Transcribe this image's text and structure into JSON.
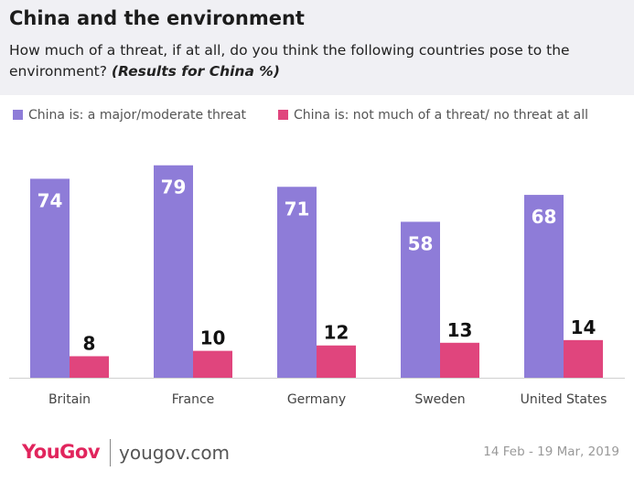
{
  "header": {
    "title": "China and the environment",
    "subtitle_main": "How much of a threat, if at all, do you think the following countries pose to the environment?",
    "subtitle_em": "(Results for China %)"
  },
  "colors": {
    "series_a": "#8e7cd8",
    "series_b": "#e0457d",
    "header_bg": "#f0f0f4",
    "brand": "#e1255d"
  },
  "chart_data": {
    "type": "bar",
    "categories": [
      "Britain",
      "France",
      "Germany",
      "Sweden",
      "United States"
    ],
    "series": [
      {
        "name": "China is: a major/moderate threat",
        "values": [
          74,
          79,
          71,
          58,
          68
        ]
      },
      {
        "name": "China is: not much of a threat/ no threat at all",
        "values": [
          8,
          10,
          12,
          13,
          14
        ]
      }
    ],
    "ylim": [
      0,
      80
    ],
    "legend": "top-left",
    "grid": false
  },
  "footer": {
    "logo": "YouGov",
    "url": "yougov.com",
    "date": "14 Feb - 19 Mar, 2019"
  }
}
